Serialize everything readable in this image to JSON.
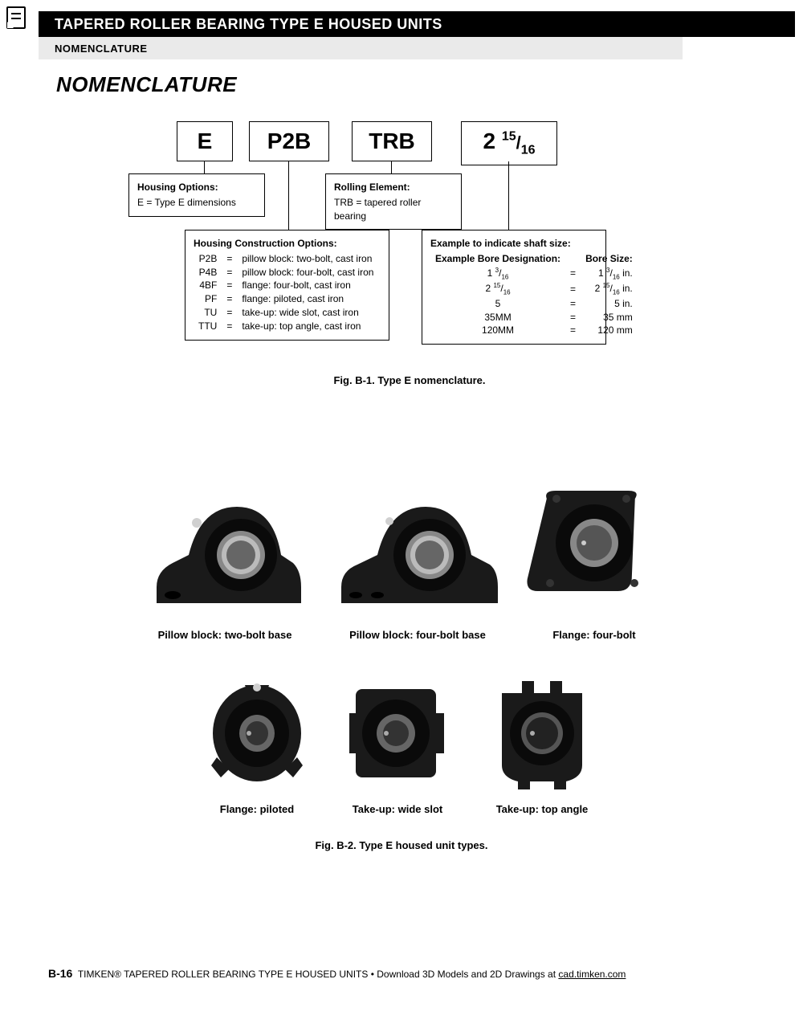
{
  "header": {
    "title": "TAPERED ROLLER BEARING TYPE E HOUSED UNITS",
    "subtitle": "NOMENCLATURE"
  },
  "section_title": "NOMENCLATURE",
  "codes": {
    "c1": "E",
    "c2": "P2B",
    "c3": "TRB",
    "c4_int": "2",
    "c4_num": "15",
    "c4_den": "16"
  },
  "box_housing": {
    "title": "Housing Options:",
    "line": "E = Type E dimensions"
  },
  "box_rolling": {
    "title": "Rolling Element:",
    "line": "TRB = tapered roller bearing"
  },
  "box_construction": {
    "title": "Housing Construction Options:",
    "rows": [
      [
        "P2B",
        "=",
        "pillow block: two-bolt, cast iron"
      ],
      [
        "P4B",
        "=",
        "pillow block: four-bolt, cast iron"
      ],
      [
        "4BF",
        "=",
        "flange: four-bolt, cast iron"
      ],
      [
        "PF",
        "=",
        "flange: piloted, cast iron"
      ],
      [
        "TU",
        "=",
        "take-up: wide slot, cast iron"
      ],
      [
        "TTU",
        "=",
        "take-up: top angle, cast iron"
      ]
    ]
  },
  "box_shaft": {
    "title": "Example to indicate shaft size:",
    "col1": "Example Bore Designation:",
    "col2": "Bore Size:",
    "rows": [
      {
        "d": "1 <sup>3</sup>/<sub class=\"den\">16</sub>",
        "s": "1 <sup>3</sup>/<sub class=\"den\">16</sub> in."
      },
      {
        "d": "2 <sup>15</sup>/<sub class=\"den\">16</sub>",
        "s": "2 <sup>15</sup>/<sub class=\"den\">16</sub> in."
      },
      {
        "d": "5",
        "s": "5 in."
      },
      {
        "d": "35MM",
        "s": "35 mm"
      },
      {
        "d": "120MM",
        "s": "120 mm"
      }
    ]
  },
  "fig1_caption": "Fig. B-1. Type E nomenclature.",
  "products": {
    "row1": [
      "Pillow block: two-bolt base",
      "Pillow block: four-bolt base",
      "Flange: four-bolt"
    ],
    "row2": [
      "Flange: piloted",
      "Take-up: wide slot",
      "Take-up: top angle"
    ]
  },
  "fig2_caption": "Fig. B-2. Type E housed unit types.",
  "footer": {
    "page": "B-16",
    "text": "TIMKEN® TAPERED ROLLER BEARING TYPE E HOUSED UNITS • Download 3D Models and 2D Drawings at ",
    "link_text": "cad.timken.com"
  },
  "colors": {
    "bearing_body": "#1a1a1a",
    "bearing_bore": "#888888",
    "bearing_bore_light": "#c8c8c8",
    "bearing_bolt": "#d0d0d0"
  }
}
